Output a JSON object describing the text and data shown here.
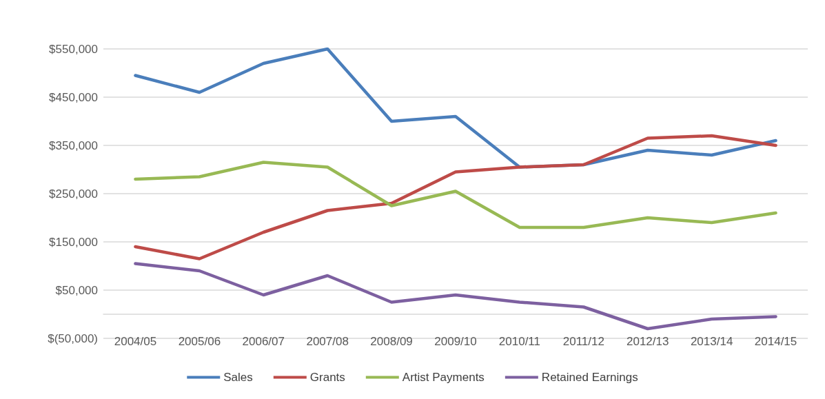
{
  "chart_data": {
    "type": "line",
    "categories": [
      "2004/05",
      "2005/06",
      "2006/07",
      "2007/08",
      "2008/09",
      "2009/10",
      "2010/11",
      "2011/12",
      "2012/13",
      "2013/14",
      "2014/15"
    ],
    "series": [
      {
        "name": "Sales",
        "color": "#4a7ebb",
        "values": [
          495000,
          460000,
          520000,
          550000,
          400000,
          410000,
          305000,
          310000,
          340000,
          330000,
          360000
        ]
      },
      {
        "name": "Grants",
        "color": "#be4b48",
        "values": [
          140000,
          115000,
          170000,
          215000,
          230000,
          295000,
          305000,
          310000,
          365000,
          370000,
          350000
        ]
      },
      {
        "name": "Artist Payments",
        "color": "#98b954",
        "values": [
          280000,
          285000,
          315000,
          305000,
          225000,
          255000,
          180000,
          180000,
          200000,
          190000,
          210000
        ]
      },
      {
        "name": "Retained Earnings",
        "color": "#7d60a0",
        "values": [
          105000,
          90000,
          40000,
          80000,
          25000,
          40000,
          25000,
          15000,
          -30000,
          -10000,
          -5000
        ]
      }
    ],
    "ylim": [
      -50000,
      550000
    ],
    "yticks": [
      {
        "value": -50000,
        "label": "$(50,000)"
      },
      {
        "value": 50000,
        "label": "$50,000"
      },
      {
        "value": 150000,
        "label": "$150,000"
      },
      {
        "value": 250000,
        "label": "$250,000"
      },
      {
        "value": 350000,
        "label": "$350,000"
      },
      {
        "value": 450000,
        "label": "$450,000"
      },
      {
        "value": 550000,
        "label": "$550,000"
      }
    ],
    "grid": "y",
    "legend": "bottom",
    "marker": "none",
    "line_style": "solid"
  }
}
